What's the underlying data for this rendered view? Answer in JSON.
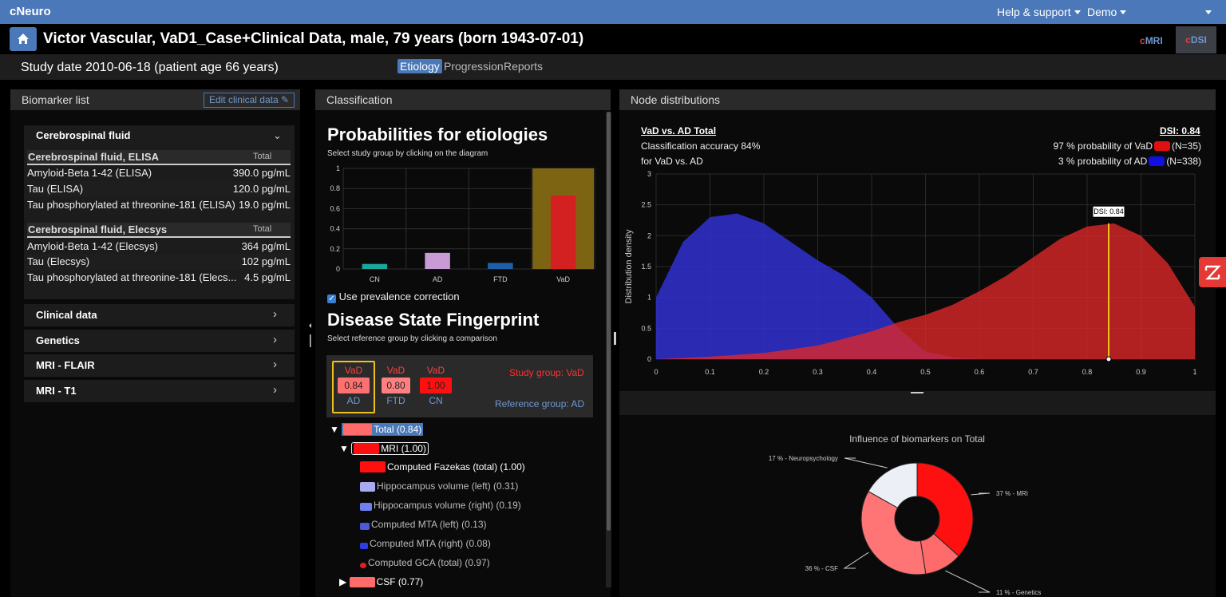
{
  "app": {
    "brand": "cNeuro",
    "help": "Help & support",
    "demo": "Demo"
  },
  "header": {
    "title": "Victor Vascular, VaD1_Case+Clinical Data, male, 79 years (born 1943-07-01)",
    "cmri": "cMRI",
    "cdsi": "cDSI"
  },
  "study": {
    "date": "Study date 2010-06-18 (patient age 66 years)",
    "tabs": [
      "Etiology",
      "Progression",
      "Reports"
    ]
  },
  "biomarker": {
    "title": "Biomarker list",
    "edit": "Edit clinical data",
    "csf_title": "Cerebrospinal fluid",
    "elisa": {
      "head": "Cerebrospinal fluid, ELISA",
      "total": "Total",
      "rows": [
        {
          "name": "Amyloid-Beta 1-42 (ELISA)",
          "value": "390.0 pg/mL"
        },
        {
          "name": "Tau (ELISA)",
          "value": "120.0 pg/mL"
        },
        {
          "name": "Tau phosphorylated at threonine-181 (ELISA)",
          "value": "19.0 pg/mL"
        }
      ]
    },
    "elecsys": {
      "head": "Cerebrospinal fluid, Elecsys",
      "total": "Total",
      "rows": [
        {
          "name": "Amyloid-Beta 1-42 (Elecsys)",
          "value": "364 pg/mL"
        },
        {
          "name": "Tau (Elecsys)",
          "value": "102 pg/mL"
        },
        {
          "name": "Tau phosphorylated at threonine-181 (Elecs...",
          "value": "4.5 pg/mL"
        }
      ]
    },
    "sections": [
      "Clinical data",
      "Genetics",
      "MRI - FLAIR",
      "MRI - T1"
    ]
  },
  "classification": {
    "title": "Classification",
    "prob_title": "Probabilities for etiologies",
    "prob_sub": "Select study group by clicking on the diagram",
    "prevalence": "Use prevalence correction",
    "fp_title": "Disease State Fingerprint",
    "fp_sub": "Select reference group by clicking a comparison",
    "fp_items": [
      {
        "top": "VaD",
        "value": "0.84",
        "bottom": "AD"
      },
      {
        "top": "VaD",
        "value": "0.80",
        "bottom": "FTD"
      },
      {
        "top": "VaD",
        "value": "1.00",
        "bottom": "CN"
      }
    ],
    "study_group": "Study group: VaD",
    "reference_group": "Reference group: AD",
    "tree": [
      "Total (0.84)",
      "MRI (1.00)",
      "Computed Fazekas (total) (1.00)",
      "Hippocampus volume (left) (0.31)",
      "Hippocampus volume (right) (0.19)",
      "Computed MTA (left) (0.13)",
      "Computed MTA (right) (0.08)",
      "Computed GCA (total) (0.97)",
      "CSF (0.77)"
    ],
    "tree_arrow_open": "▼",
    "tree_arrow_closed": "▶"
  },
  "chart_data": [
    {
      "type": "bar",
      "categories": [
        "CN",
        "AD",
        "FTD",
        "VaD"
      ],
      "values": [
        0.05,
        0.16,
        0.06,
        0.73
      ],
      "highlight": "VaD",
      "colors": [
        "#1aa79c",
        "#c89bd6",
        "#1f5fa8",
        "#d32020"
      ],
      "highlight_color": "#7d6412",
      "ylim": [
        0,
        1
      ],
      "yticks": [
        "0",
        "0.2",
        "0.4",
        "0.6",
        "0.8",
        "1"
      ]
    },
    {
      "type": "area",
      "title": "VaD vs. AD Total",
      "dsi": "DSI: 0.84",
      "accuracy": "Classification accuracy 84%",
      "accuracy2": "for VaD vs. AD",
      "legend": [
        {
          "text": "97 % probability of VaD",
          "n": "(N=35)",
          "color": "#e01010"
        },
        {
          "text": "3 % probability of AD",
          "n": "(N=338)",
          "color": "#1010e0"
        }
      ],
      "ylabel": "Distribution density",
      "xlim": [
        0,
        1
      ],
      "ylim": [
        0,
        3
      ],
      "xticks": [
        "0",
        "0.1",
        "0.2",
        "0.3",
        "0.4",
        "0.5",
        "0.6",
        "0.7",
        "0.8",
        "0.9",
        "1"
      ],
      "yticks": [
        "0",
        "0.5",
        "1",
        "1.5",
        "2",
        "2.5",
        "3"
      ],
      "marker": 0.84,
      "marker_label": "DSI: 0.84",
      "series": [
        {
          "name": "AD",
          "color": "#3030d0",
          "x": [
            0,
            0.05,
            0.1,
            0.15,
            0.2,
            0.25,
            0.3,
            0.35,
            0.4,
            0.45,
            0.5,
            0.55,
            0.6
          ],
          "y": [
            1.0,
            1.9,
            2.3,
            2.36,
            2.2,
            1.9,
            1.6,
            1.35,
            1.0,
            0.5,
            0.12,
            0.03,
            0.0
          ]
        },
        {
          "name": "VaD",
          "color": "#e02828",
          "x": [
            0,
            0.1,
            0.2,
            0.3,
            0.4,
            0.45,
            0.5,
            0.55,
            0.6,
            0.65,
            0.7,
            0.75,
            0.8,
            0.85,
            0.9,
            0.95,
            1.0
          ],
          "y": [
            0.0,
            0.04,
            0.1,
            0.22,
            0.45,
            0.6,
            0.72,
            0.88,
            1.1,
            1.35,
            1.65,
            1.95,
            2.15,
            2.2,
            2.0,
            1.55,
            0.85
          ]
        }
      ]
    },
    {
      "type": "pie",
      "title": "Influence of biomarkers on Total",
      "slices": [
        {
          "label": "37 % - MRI",
          "value": 37,
          "color": "#ff1010"
        },
        {
          "label": "11 % - Genetics",
          "value": 11,
          "color": "#ff6b6b"
        },
        {
          "label": "36 % - CSF",
          "value": 36,
          "color": "#ff7474"
        },
        {
          "label": "17 % - Neuropsychology",
          "value": 17,
          "color": "#eceff6"
        }
      ]
    }
  ],
  "node": {
    "title": "Node distributions"
  }
}
